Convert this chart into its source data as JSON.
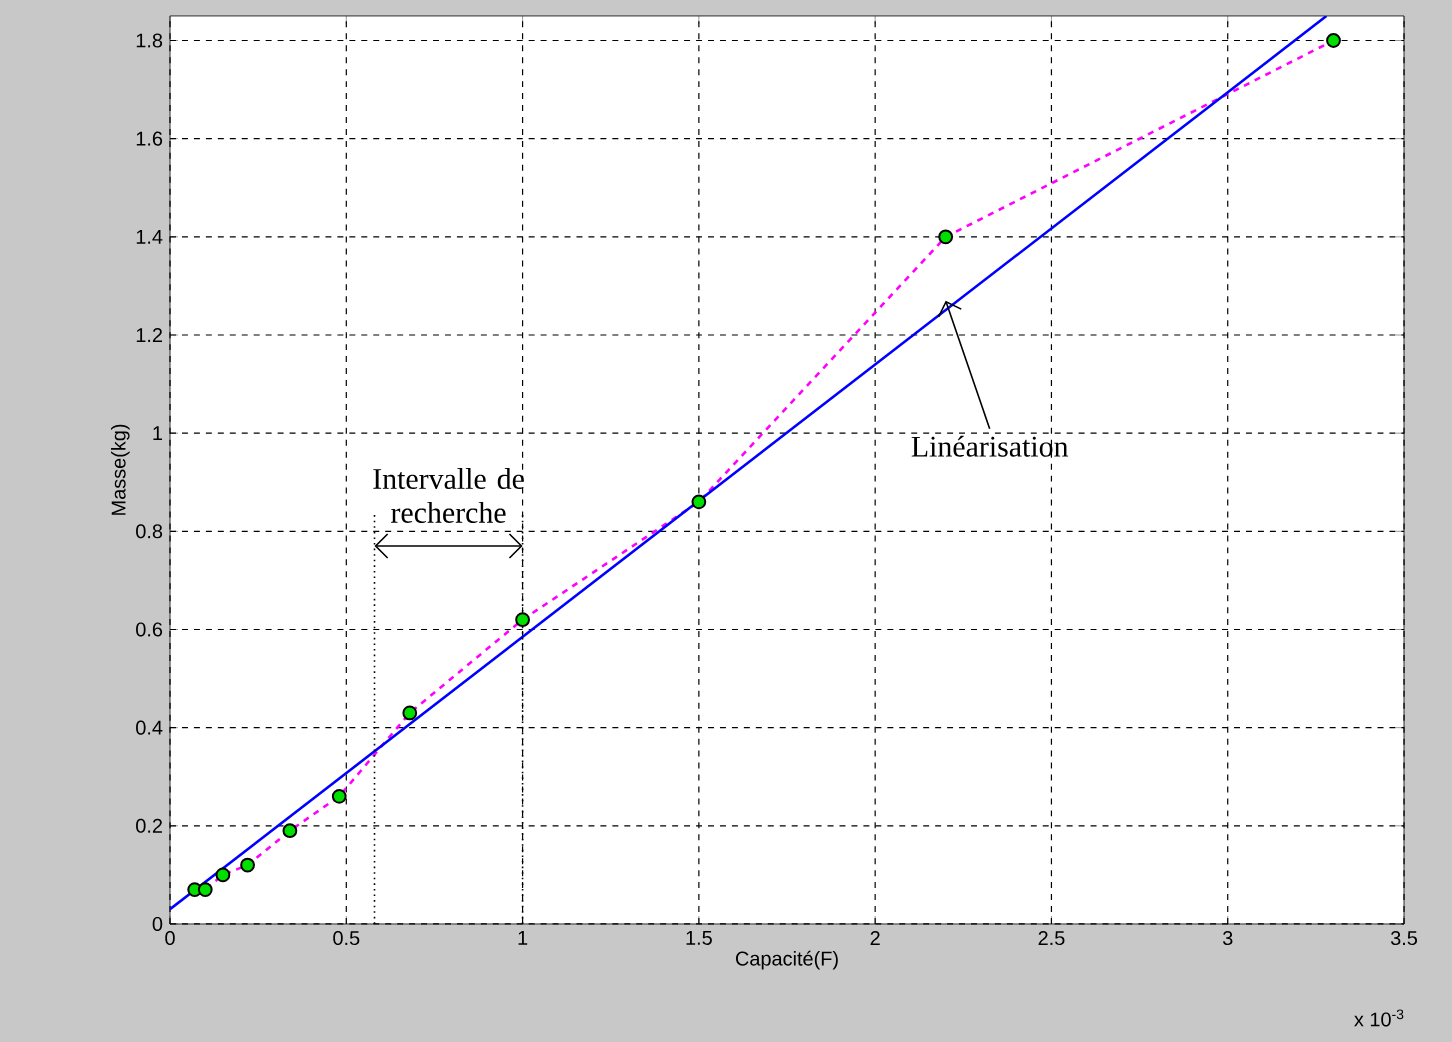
{
  "chart_data": {
    "type": "line",
    "xlabel": "Capacité(F)",
    "ylabel": "Masse(kg)",
    "xlim": [
      0,
      3.5
    ],
    "ylim": [
      0,
      1.85
    ],
    "xticks": [
      0,
      0.5,
      1,
      1.5,
      2,
      2.5,
      3,
      3.5
    ],
    "yticks": [
      0,
      0.2,
      0.4,
      0.6,
      0.8,
      1,
      1.2,
      1.4,
      1.6,
      1.8
    ],
    "grid": true,
    "x": [
      0.07,
      0.1,
      0.15,
      0.22,
      0.34,
      0.48,
      0.68,
      1.0,
      1.5,
      2.2,
      3.3
    ],
    "series": [
      {
        "color": "#ff00ff",
        "line_style": "dashed",
        "marker": "none",
        "values": [
          0.07,
          0.07,
          0.1,
          0.12,
          0.19,
          0.26,
          0.43,
          0.62,
          0.86,
          1.4,
          1.8
        ]
      },
      {
        "type": "scatter",
        "color": "#00e000",
        "marker": "circle",
        "values": [
          0.07,
          0.07,
          0.1,
          0.12,
          0.19,
          0.26,
          0.43,
          0.62,
          0.86,
          1.4,
          1.8
        ]
      },
      {
        "type": "line",
        "color": "#0000ff",
        "line_style": "solid",
        "marker": "none",
        "x": [
          0,
          3.28
        ],
        "values": [
          0.03,
          1.85
        ]
      }
    ],
    "ref_lines": [
      {
        "axis": "x",
        "value": 0.58,
        "line_style": "dotted"
      },
      {
        "axis": "x",
        "value": 1.0,
        "line_style": "dotted"
      }
    ],
    "annotations": [
      "Intervalle de recherche",
      {
        "text": "Linéarisation",
        "x": 2.2,
        "y": 1.27
      },
      "x 10$^{-3}$"
    ]
  }
}
